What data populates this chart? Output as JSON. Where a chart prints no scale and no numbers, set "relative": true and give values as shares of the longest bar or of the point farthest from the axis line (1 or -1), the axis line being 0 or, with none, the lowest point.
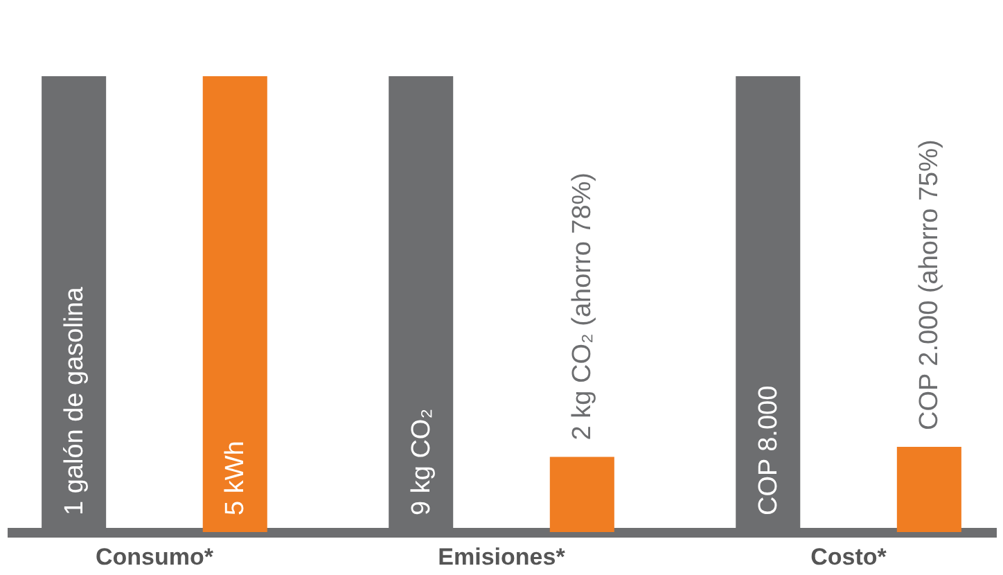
{
  "chart_data": {
    "type": "bar",
    "relative": true,
    "categories": [
      "Consumo*",
      "Emisiones*",
      "Costo*"
    ],
    "series": [
      {
        "color": "#6d6e70",
        "values": [
          1,
          1,
          1
        ]
      },
      {
        "color": "#f07d22",
        "values": [
          1,
          0.165,
          0.187
        ]
      }
    ],
    "annotations": [
      "1 galón de gasolina",
      "9 kg CO₂",
      "COP 8.000",
      "5 kWh",
      "2 kg CO₂ (ahorro 78%)",
      "COP 2.000 (ahorro 75%)"
    ],
    "grid": false,
    "legend": false,
    "tick_labels": "x"
  }
}
